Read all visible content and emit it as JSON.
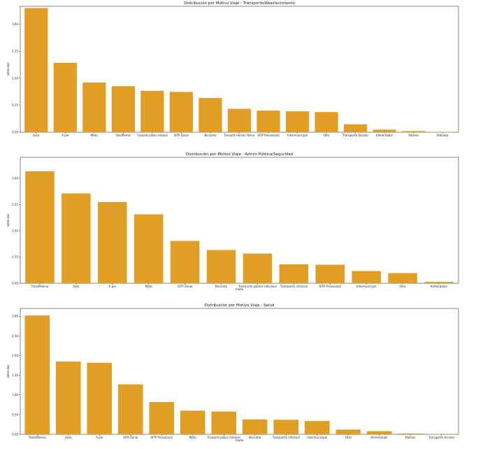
{
  "colors": {
    "bar": "#E09E24",
    "axis": "#333333"
  },
  "chart_data": [
    {
      "type": "bar",
      "title": "Distribución por Motivo Viaje - Transporte/Abastecimiento",
      "ylabel": "vehículos",
      "xlabel": "",
      "ylim": [
        0,
        3.5
      ],
      "yticks": [
        "0.00",
        "0.75",
        "1.50",
        "2.25",
        "3.00"
      ],
      "categories": [
        "Auto",
        "A pie",
        "Moto",
        "Taxi/Remis",
        "Transporte público individual",
        "SITP Zonal",
        "Bicicleta",
        "Transporte informal / Alterno",
        "SITP Provisional",
        "Intermunicipal",
        "Otro",
        "Transporte Escolar",
        "Alimentador",
        "Patines",
        "Patineta"
      ],
      "values": [
        3.45,
        1.93,
        1.38,
        1.28,
        1.15,
        1.12,
        0.95,
        0.65,
        0.6,
        0.58,
        0.56,
        0.22,
        0.07,
        0.03,
        0.01
      ]
    },
    {
      "type": "bar",
      "title": "Distribución por Motivo Viaje - Admin Pública/Seguridad",
      "ylabel": "vehículos",
      "xlabel": "modo",
      "ylim": [
        0,
        3.6
      ],
      "yticks": [
        "0.00",
        "0.75",
        "1.50",
        "2.25",
        "3.00"
      ],
      "categories": [
        "TransMilenio",
        "Auto",
        "A pie",
        "Moto",
        "SITP Zonal",
        "Bicicleta",
        "Transporte público individual",
        "Transporte informal",
        "SITP Provisional",
        "Intermunicipal",
        "Otro",
        "Alimentador"
      ],
      "values": [
        3.2,
        2.57,
        2.32,
        1.97,
        1.21,
        0.95,
        0.85,
        0.54,
        0.53,
        0.35,
        0.29,
        0.04
      ]
    },
    {
      "type": "bar",
      "title": "Distribución por Motivo Viaje - Salud",
      "ylabel": "vehículos",
      "xlabel": "modo",
      "ylim": [
        0,
        3.2
      ],
      "yticks": [
        "0.00",
        "0.50",
        "1.00",
        "1.50",
        "2.00",
        "2.50",
        "3.00"
      ],
      "categories": [
        "TransMilenio",
        "Auto",
        "A pie",
        "SITP Zonal",
        "SITP Provisional",
        "Moto",
        "Transporte público individual",
        "Bicicleta",
        "Transporte informal",
        "Intermunicipal",
        "Otro",
        "Alimentador",
        "Patines",
        "Transporte Escolar"
      ],
      "values": [
        3.02,
        1.85,
        1.82,
        1.27,
        0.82,
        0.6,
        0.58,
        0.38,
        0.37,
        0.34,
        0.12,
        0.08,
        0.02,
        0.01
      ]
    }
  ]
}
